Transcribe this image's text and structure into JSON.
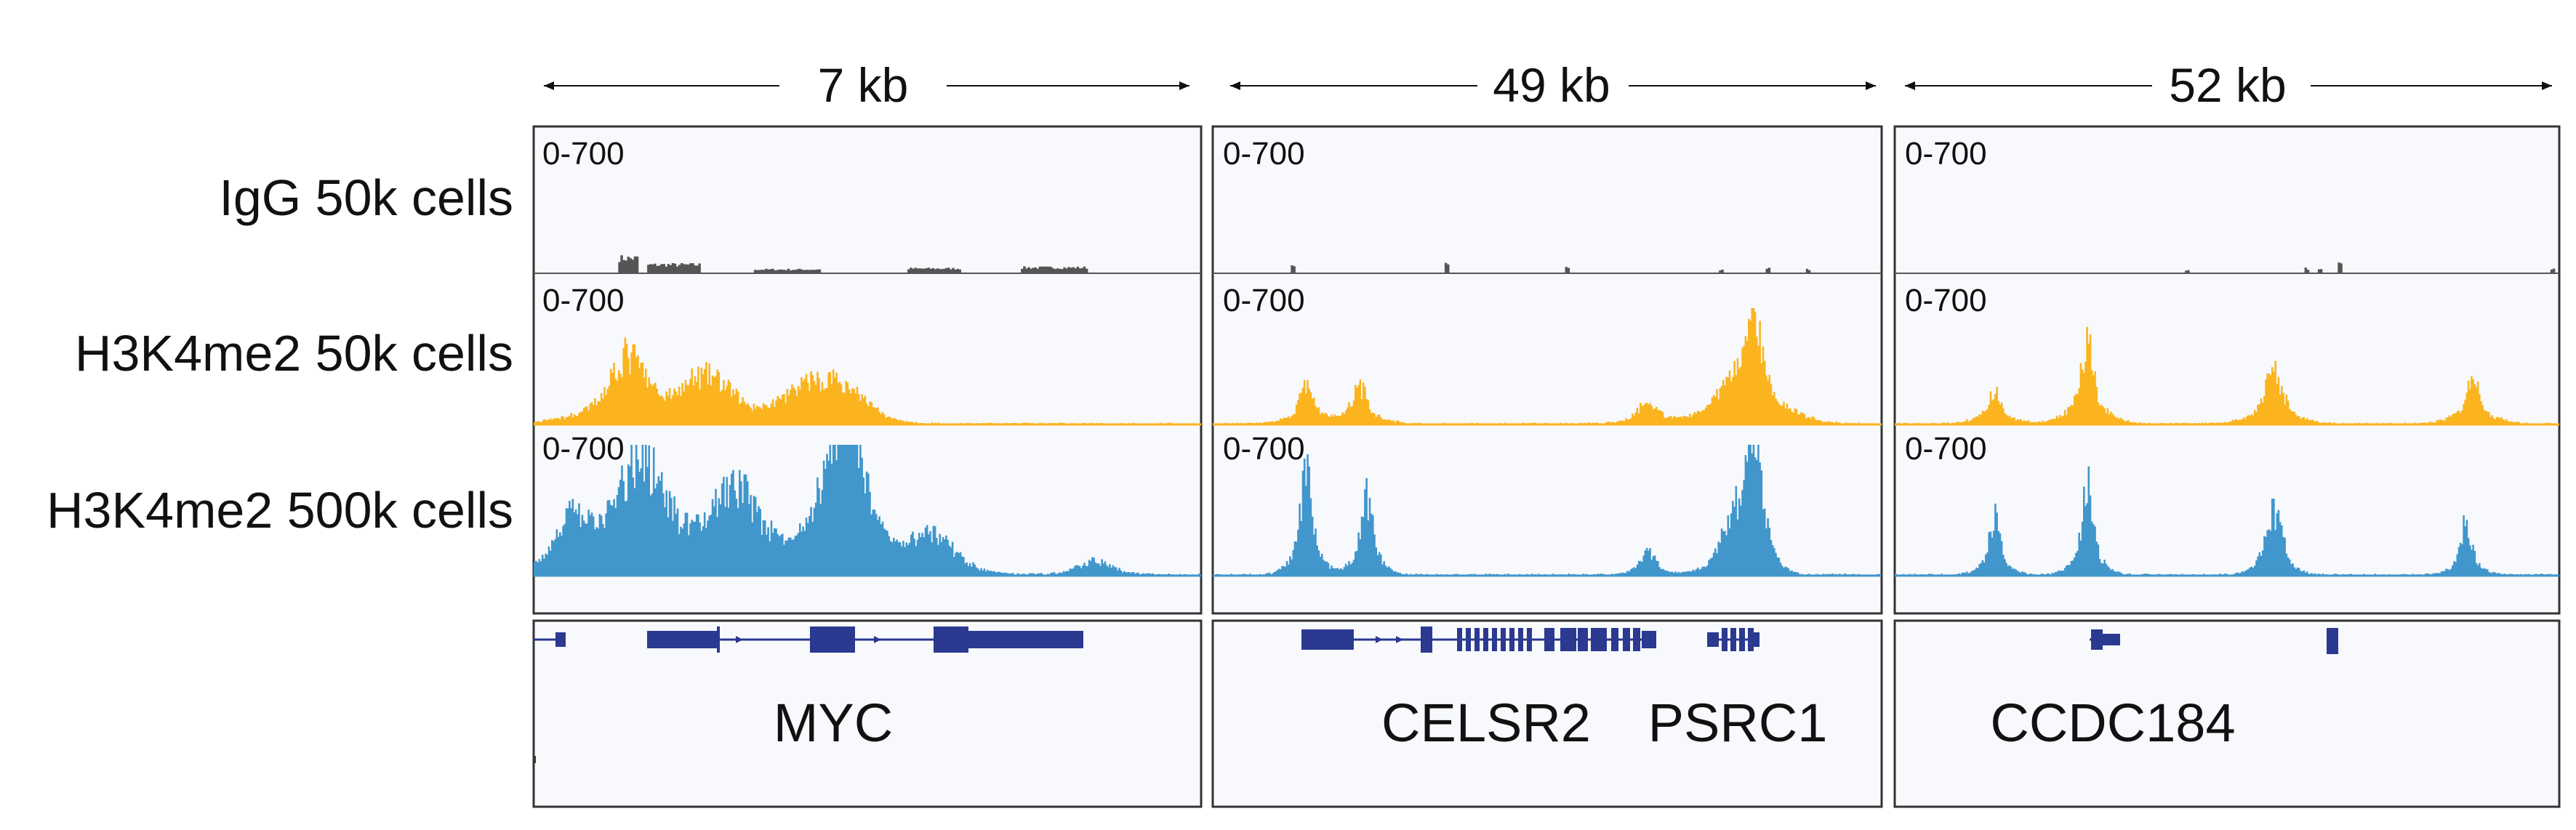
{
  "colors": {
    "igg": "#555555",
    "h3k4me2_50k": "#fbb41e",
    "h3k4me2_500k": "#4196cc",
    "gene": "#2b3990",
    "panel_bg": "#f7f9fc",
    "frame": "#333333"
  },
  "tracks": [
    {
      "key": "igg",
      "label": "IgG 50k cells",
      "range": "0-700"
    },
    {
      "key": "h3k4me2_50k",
      "label": "H3K4me2 50k cells",
      "range": "0-700"
    },
    {
      "key": "h3k4me2_500k",
      "label": "H3K4me2 500k cells",
      "range": "0-700"
    }
  ],
  "loci": [
    {
      "scale": "7 kb",
      "genes": [
        "MYC"
      ],
      "peaks": {
        "igg": [
          [
            0.14,
            0.16,
            0.015,
            0.05
          ],
          [
            0.21,
            0.09,
            0.04,
            0.04
          ],
          [
            0.38,
            0.04,
            0.05,
            0.2
          ],
          [
            0.6,
            0.05,
            0.04,
            0.2
          ],
          [
            0.78,
            0.06,
            0.05,
            0.1
          ]
        ],
        "h3k4me2_50k": [
          [
            0.14,
            0.42,
            0.035,
            0.06
          ],
          [
            0.26,
            0.28,
            0.05,
            0.04
          ],
          [
            0.41,
            0.22,
            0.05,
            0.04
          ],
          [
            0.47,
            0.17,
            0.04,
            0.03
          ]
        ],
        "h3k4me2_500k": [
          [
            0.06,
            0.28,
            0.03,
            0.06
          ],
          [
            0.16,
            0.62,
            0.05,
            0.06
          ],
          [
            0.3,
            0.45,
            0.05,
            0.04
          ],
          [
            0.46,
            0.4,
            0.05,
            0.04
          ],
          [
            0.47,
            0.55,
            0.03,
            0.06
          ],
          [
            0.6,
            0.2,
            0.04,
            0.04
          ],
          [
            0.84,
            0.08,
            0.03,
            0.03
          ]
        ]
      }
    },
    {
      "scale": "49 kb",
      "genes": [
        "CELSR2",
        "PSRC1"
      ],
      "peaks": {
        "igg": [
          [
            0.12,
            0.07,
            0.004,
            0.0
          ],
          [
            0.35,
            0.1,
            0.004,
            0.0
          ],
          [
            0.53,
            0.06,
            0.004,
            0.0
          ],
          [
            0.76,
            0.04,
            0.004,
            0.0
          ],
          [
            0.83,
            0.05,
            0.004,
            0.0
          ],
          [
            0.89,
            0.04,
            0.004,
            0.0
          ]
        ],
        "h3k4me2_50k": [
          [
            0.14,
            0.25,
            0.012,
            0.03
          ],
          [
            0.22,
            0.22,
            0.015,
            0.03
          ],
          [
            0.65,
            0.12,
            0.02,
            0.03
          ],
          [
            0.81,
            0.55,
            0.018,
            0.05
          ],
          [
            0.78,
            0.2,
            0.03,
            0.05
          ]
        ],
        "h3k4me2_500k": [
          [
            0.14,
            0.55,
            0.012,
            0.02
          ],
          [
            0.23,
            0.42,
            0.012,
            0.02
          ],
          [
            0.65,
            0.12,
            0.015,
            0.02
          ],
          [
            0.81,
            0.75,
            0.014,
            0.02
          ],
          [
            0.78,
            0.3,
            0.025,
            0.03
          ]
        ]
      }
    },
    {
      "scale": "52 kb",
      "genes": [
        "CCDC184"
      ],
      "peaks": {
        "igg": [
          [
            0.44,
            0.03,
            0.004,
            0.0
          ],
          [
            0.64,
            0.04,
            0.004,
            0.0
          ],
          [
            0.62,
            0.05,
            0.004,
            0.0
          ],
          [
            0.67,
            0.12,
            0.004,
            0.0
          ],
          [
            0.99,
            0.05,
            0.004,
            0.0
          ]
        ],
        "h3k4me2_50k": [
          [
            0.15,
            0.22,
            0.012,
            0.03
          ],
          [
            0.29,
            0.52,
            0.012,
            0.03
          ],
          [
            0.57,
            0.32,
            0.018,
            0.03
          ],
          [
            0.87,
            0.32,
            0.012,
            0.03
          ]
        ],
        "h3k4me2_500k": [
          [
            0.15,
            0.32,
            0.01,
            0.02
          ],
          [
            0.29,
            0.52,
            0.01,
            0.02
          ],
          [
            0.57,
            0.35,
            0.016,
            0.02
          ],
          [
            0.86,
            0.3,
            0.01,
            0.02
          ]
        ]
      }
    }
  ]
}
